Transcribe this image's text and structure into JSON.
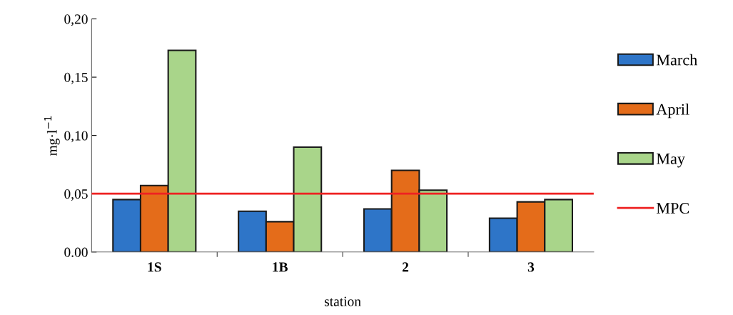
{
  "chart_data": {
    "type": "bar",
    "xlabel": "station",
    "ylabel": "mg·l$^{−1}$",
    "categories": [
      "1S",
      "1B",
      "2",
      "3"
    ],
    "series": [
      {
        "name": "March",
        "color": "#2e75c8",
        "values": [
          0.045,
          0.035,
          0.037,
          0.029
        ]
      },
      {
        "name": "April",
        "color": "#e46c1a",
        "values": [
          0.057,
          0.026,
          0.07,
          0.043
        ]
      },
      {
        "name": "May",
        "color": "#a9d58a",
        "values": [
          0.173,
          0.09,
          0.053,
          0.045
        ]
      }
    ],
    "ylim": [
      0,
      0.2
    ],
    "yticks": [
      {
        "value": 0,
        "label": "0.00"
      },
      {
        "value": 0.05,
        "label": "0,05"
      },
      {
        "value": 0.1,
        "label": "0,10"
      },
      {
        "value": 0.15,
        "label": "0,15"
      },
      {
        "value": 0.2,
        "label": "0,20"
      }
    ],
    "ref_lines": [
      {
        "axis": "y",
        "value": 0.05,
        "label": "MPC",
        "color": "#ee2222"
      }
    ],
    "grid": false,
    "legend": "right"
  }
}
